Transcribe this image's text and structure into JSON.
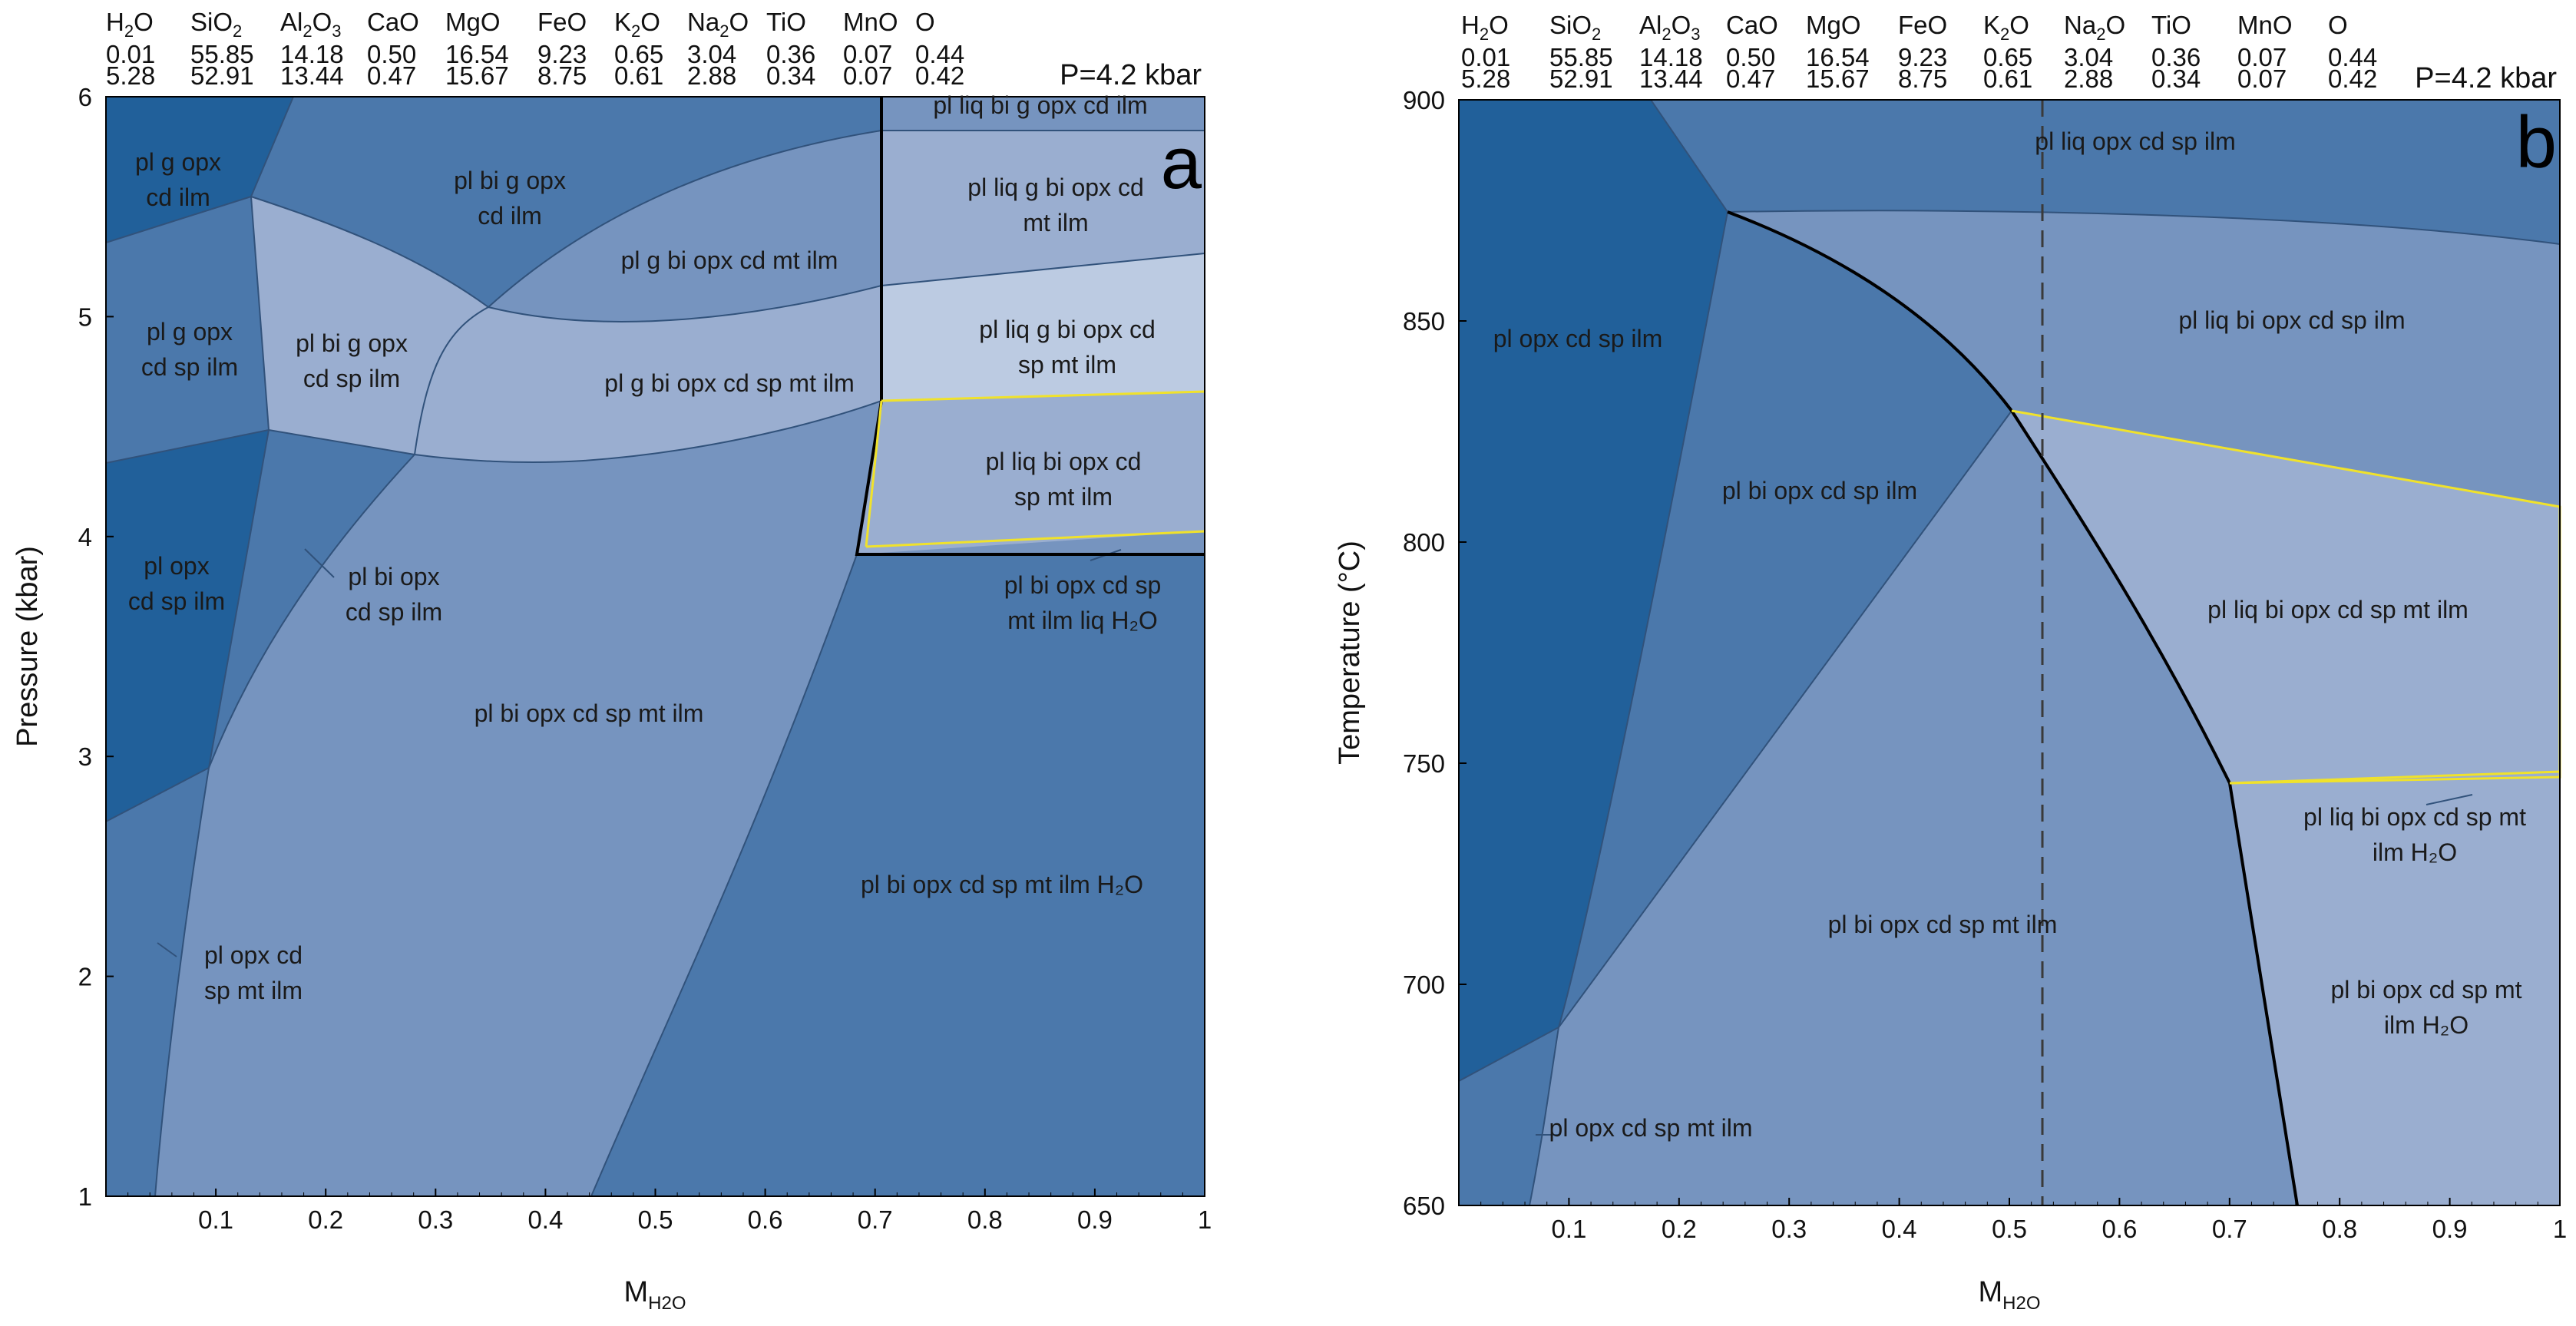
{
  "chart_data": [
    {
      "type": "phase_diagram",
      "panel": "a",
      "title": "P=4.2 kbar",
      "xlabel": "M",
      "xlabel_sub": "H2O",
      "ylabel": "Pressure (kbar)",
      "xlim": [
        0,
        1
      ],
      "ylim": [
        1,
        6
      ],
      "x_ticks": [
        "0.1",
        "0.2",
        "0.3",
        "0.4",
        "0.5",
        "0.6",
        "0.7",
        "0.8",
        "0.9",
        "1"
      ],
      "y_ticks": [
        "1",
        "2",
        "3",
        "4",
        "5",
        "6"
      ],
      "composition": {
        "oxides": [
          {
            "base": "H",
            "sub": "2",
            "rest": "O"
          },
          {
            "base": "SiO",
            "sub": "2",
            "rest": ""
          },
          {
            "base": "Al",
            "sub": "2",
            "rest": "O",
            "sub2": "3"
          },
          {
            "base": "CaO",
            "sub": "",
            "rest": ""
          },
          {
            "base": "MgO",
            "sub": "",
            "rest": ""
          },
          {
            "base": "FeO",
            "sub": "",
            "rest": ""
          },
          {
            "base": "K",
            "sub": "2",
            "rest": "O"
          },
          {
            "base": "Na",
            "sub": "2",
            "rest": "O"
          },
          {
            "base": "TiO",
            "sub": "",
            "rest": ""
          },
          {
            "base": "MnO",
            "sub": "",
            "rest": ""
          },
          {
            "base": "O",
            "sub": "",
            "rest": ""
          }
        ],
        "row1": [
          "0.01",
          "55.85",
          "14.18",
          "0.50",
          "16.54",
          "9.23",
          "0.65",
          "3.04",
          "0.36",
          "0.07",
          "0.44"
        ],
        "row2": [
          "5.28",
          "52.91",
          "13.44",
          "0.47",
          "15.67",
          "8.75",
          "0.61",
          "2.88",
          "0.34",
          "0.07",
          "0.42"
        ]
      },
      "fields": [
        {
          "label": "pl g opx|cd ilm",
          "variance": "low"
        },
        {
          "label": "pl bi g opx|cd ilm",
          "variance": "mid"
        },
        {
          "label": "pl liq bi g opx cd ilm",
          "variance": "mid"
        },
        {
          "label": "pl liq g bi opx cd|mt ilm",
          "variance": "high"
        },
        {
          "label": "pl g bi opx cd mt ilm",
          "variance": "high"
        },
        {
          "label": "pl g opx|cd sp ilm",
          "variance": "mid"
        },
        {
          "label": "pl bi g opx|cd sp ilm",
          "variance": "high"
        },
        {
          "label": "pl liq g bi opx cd|sp mt ilm",
          "variance": "highest"
        },
        {
          "label": "pl g bi opx cd sp mt ilm",
          "variance": "highest"
        },
        {
          "label": "pl liq bi opx cd|sp mt ilm",
          "variance": "high"
        },
        {
          "label": "pl opx|cd sp ilm",
          "variance": "low"
        },
        {
          "label": "pl bi opx|cd sp ilm",
          "variance": "mid"
        },
        {
          "label": "pl bi opx cd sp|mt ilm liq H₂O",
          "variance": "mid"
        },
        {
          "label": "pl bi opx cd sp mt ilm",
          "variance": "high"
        },
        {
          "label": "pl bi opx cd sp mt ilm H₂O",
          "variance": "mid"
        },
        {
          "label": "pl opx cd|sp mt ilm",
          "variance": "mid"
        }
      ]
    },
    {
      "type": "phase_diagram",
      "panel": "b",
      "title": "P=4.2 kbar",
      "xlabel": "M",
      "xlabel_sub": "H2O",
      "ylabel": "Temperature (°C)",
      "xlim": [
        0,
        1
      ],
      "ylim": [
        650,
        900
      ],
      "x_ticks": [
        "0.1",
        "0.2",
        "0.3",
        "0.4",
        "0.5",
        "0.6",
        "0.7",
        "0.8",
        "0.9",
        "1"
      ],
      "y_ticks": [
        "650",
        "700",
        "750",
        "800",
        "850",
        "900"
      ],
      "dashed_line_x": 0.53,
      "composition": {
        "row1": [
          "0.01",
          "55.85",
          "14.18",
          "0.50",
          "16.54",
          "9.23",
          "0.65",
          "3.04",
          "0.36",
          "0.07",
          "0.44"
        ],
        "row2": [
          "5.28",
          "52.91",
          "13.44",
          "0.47",
          "15.67",
          "8.75",
          "0.61",
          "2.88",
          "0.34",
          "0.07",
          "0.42"
        ]
      },
      "fields": [
        {
          "label": "pl liq opx cd sp ilm",
          "variance": "mid"
        },
        {
          "label": "pl opx cd sp ilm",
          "variance": "low"
        },
        {
          "label": "pl liq bi opx cd sp ilm",
          "variance": "high"
        },
        {
          "label": "pl bi opx cd sp ilm",
          "variance": "mid"
        },
        {
          "label": "pl liq bi opx cd sp mt ilm",
          "variance": "highest"
        },
        {
          "label": "pl bi opx cd sp mt ilm",
          "variance": "high"
        },
        {
          "label": "pl liq bi opx cd sp mt|ilm H₂O",
          "variance": "high"
        },
        {
          "label": "pl bi opx cd sp mt|ilm H₂O",
          "variance": "highest"
        },
        {
          "label": "pl opx cd sp mt ilm",
          "variance": "mid"
        }
      ]
    }
  ],
  "colors": {
    "low": "#21609a",
    "mid": "#4b78ab",
    "high": "#7694bf",
    "highest": "#9aaed0",
    "pale": "#bccbe2",
    "boundary": "#000000",
    "thin": "#31527b",
    "liquidus": "#f0e22b"
  }
}
